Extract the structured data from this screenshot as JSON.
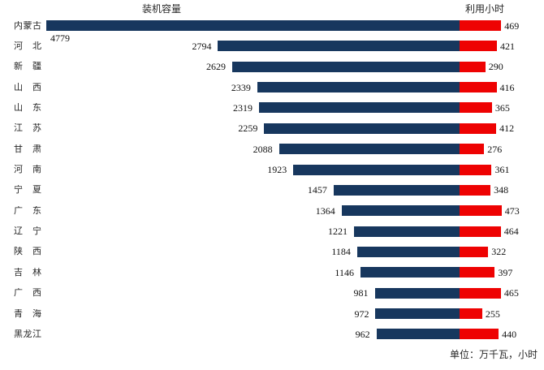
{
  "chart_data": {
    "type": "bar",
    "subtype": "tornado",
    "orientation": "horizontal",
    "title_left": "装机容量",
    "title_right": "利用小时",
    "unit_note": "单位：万千瓦，小时",
    "grid": false,
    "value_labels": "outside-end",
    "categories": [
      "内蒙古",
      "河北",
      "新疆",
      "山西",
      "山东",
      "江苏",
      "甘肃",
      "河南",
      "宁夏",
      "广东",
      "辽宁",
      "陕西",
      "吉林",
      "广西",
      "青海",
      "黑龙江"
    ],
    "series": [
      {
        "name": "装机容量",
        "direction": "left",
        "color": "#17375E",
        "values": [
          4779,
          2794,
          2629,
          2339,
          2319,
          2259,
          2088,
          1923,
          1457,
          1364,
          1221,
          1184,
          1146,
          981,
          972,
          962
        ]
      },
      {
        "name": "利用小时",
        "direction": "right",
        "color": "#EE0202",
        "values": [
          469,
          421,
          290,
          416,
          365,
          412,
          276,
          361,
          348,
          473,
          464,
          322,
          397,
          465,
          255,
          440
        ]
      }
    ]
  },
  "colors": {
    "capacity_bar": "#17375E",
    "hours_bar": "#EE0202",
    "text": "#262626",
    "background": "#FFFFFF"
  }
}
